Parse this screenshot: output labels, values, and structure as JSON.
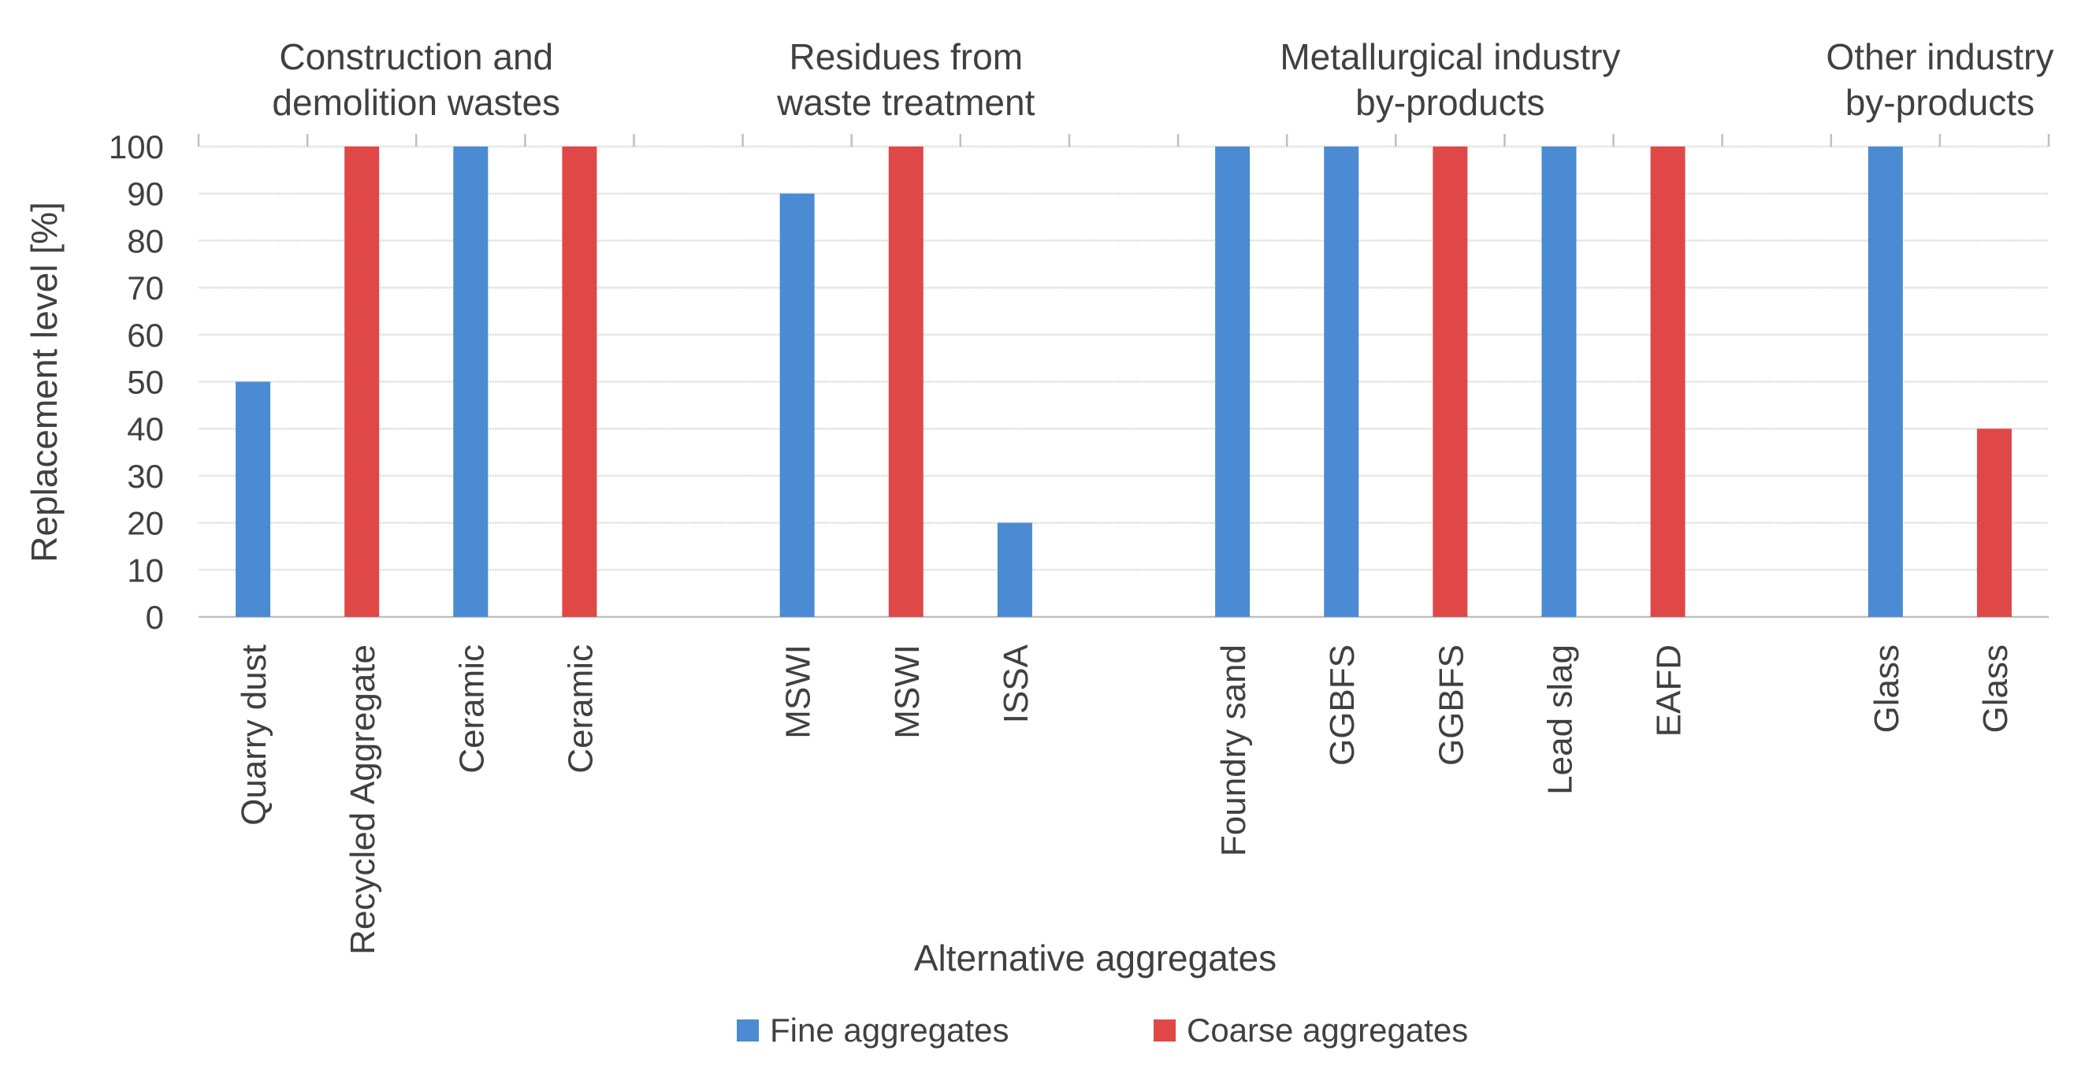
{
  "chart_data": {
    "type": "bar",
    "title": "",
    "xlabel": "Alternative aggregates",
    "ylabel": "Replacement level [%]",
    "ylim": [
      0,
      100
    ],
    "y_ticks": [
      "0",
      "10",
      "20",
      "30",
      "40",
      "50",
      "60",
      "70",
      "80",
      "90",
      "100"
    ],
    "grid": true,
    "legend_position": "bottom",
    "series": [
      {
        "name": "Fine aggregates",
        "color": "#4A8BD3"
      },
      {
        "name": "Coarse aggregates",
        "color": "#E04848"
      }
    ],
    "groups": [
      {
        "label_lines": [
          "Construction and",
          "demolition wastes"
        ]
      },
      {
        "label_lines": [
          "Residues from",
          "waste treatment"
        ]
      },
      {
        "label_lines": [
          "Metallurgical industry",
          "by-products"
        ]
      },
      {
        "label_lines": [
          "Other industry",
          "by-products"
        ]
      }
    ],
    "categories": [
      {
        "label": "Quarry dust",
        "value": 50,
        "series": "Fine aggregates",
        "group": 0
      },
      {
        "label": "Recycled Aggregate",
        "value": 100,
        "series": "Coarse aggregates",
        "group": 0
      },
      {
        "label": "Ceramic",
        "value": 100,
        "series": "Fine aggregates",
        "group": 0
      },
      {
        "label": "Ceramic",
        "value": 100,
        "series": "Coarse aggregates",
        "group": 0
      },
      {
        "label": "",
        "value": null,
        "series": null,
        "group": 0
      },
      {
        "label": "MSWI",
        "value": 90,
        "series": "Fine aggregates",
        "group": 1
      },
      {
        "label": "MSWI",
        "value": 100,
        "series": "Coarse aggregates",
        "group": 1
      },
      {
        "label": "ISSA",
        "value": 20,
        "series": "Fine aggregates",
        "group": 1
      },
      {
        "label": "",
        "value": null,
        "series": null,
        "group": 1
      },
      {
        "label": "Foundry sand",
        "value": 100,
        "series": "Fine aggregates",
        "group": 2
      },
      {
        "label": "GGBFS",
        "value": 100,
        "series": "Fine aggregates",
        "group": 2
      },
      {
        "label": "GGBFS",
        "value": 100,
        "series": "Coarse aggregates",
        "group": 2
      },
      {
        "label": "Lead slag",
        "value": 100,
        "series": "Fine aggregates",
        "group": 2
      },
      {
        "label": "EAFD",
        "value": 100,
        "series": "Coarse aggregates",
        "group": 2
      },
      {
        "label": "",
        "value": null,
        "series": null,
        "group": 2
      },
      {
        "label": "Glass",
        "value": 100,
        "series": "Fine aggregates",
        "group": 3
      },
      {
        "label": "Glass",
        "value": 40,
        "series": "Coarse aggregates",
        "group": 3
      }
    ]
  }
}
